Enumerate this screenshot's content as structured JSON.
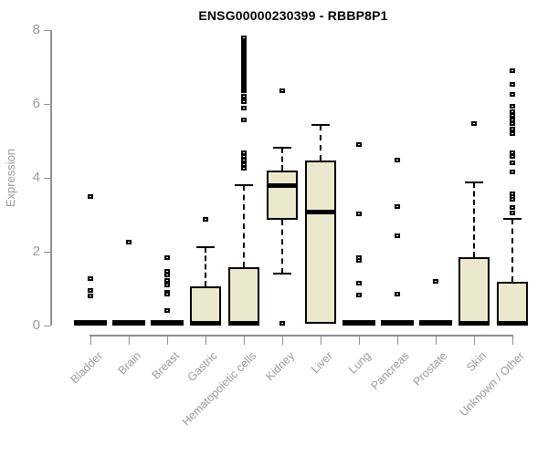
{
  "title": "ENSG00000230399 - RBBP8P1",
  "ylabel": "Expression",
  "colors": {
    "box_fill": "#ece8cd",
    "box_border": "#000000",
    "axis": "#8f8f8f",
    "tick_label": "#9b9b9b",
    "title": "#000000",
    "background": "#ffffff"
  },
  "chart_data": {
    "type": "boxplot",
    "title": "ENSG00000230399 - RBBP8P1",
    "xlabel": "",
    "ylabel": "Expression",
    "ylim": [
      0,
      8
    ],
    "yticks": [
      0,
      2,
      4,
      6,
      8
    ],
    "grid": false,
    "legend": false,
    "categories": [
      "Bladder",
      "Brain",
      "Breast",
      "Gastric",
      "Hematopoietic cells",
      "Kidney",
      "Liver",
      "Lung",
      "Pancreas",
      "Prostate",
      "Skin",
      "Unknown / Other"
    ],
    "series": [
      {
        "name": "Bladder",
        "q1": 0,
        "median": 0,
        "q3": 0,
        "whisker_low": 0,
        "whisker_high": 0,
        "outliers": [
          3.5,
          1.26,
          0.95,
          0.8
        ]
      },
      {
        "name": "Brain",
        "q1": 0,
        "median": 0,
        "q3": 0,
        "whisker_low": 0,
        "whisker_high": 0,
        "outliers": [
          2.27
        ]
      },
      {
        "name": "Breast",
        "q1": 0,
        "median": 0,
        "q3": 0,
        "whisker_low": 0,
        "whisker_high": 0,
        "outliers": [
          1.85,
          1.48,
          1.36,
          1.23,
          1.11,
          0.91,
          0.84,
          0.4
        ]
      },
      {
        "name": "Gastric",
        "q1": 0,
        "median": 0.02,
        "q3": 1.05,
        "whisker_low": 0,
        "whisker_high": 2.13,
        "outliers": [
          2.87
        ]
      },
      {
        "name": "Hematopoietic cells",
        "q1": 0,
        "median": 0.02,
        "q3": 1.58,
        "whisker_low": 0,
        "whisker_high": 3.8,
        "outliers": [
          4.25,
          4.37,
          4.47,
          4.57,
          4.69,
          5.56,
          5.9,
          6.07,
          6.15,
          6.22,
          6.35,
          6.4,
          6.45,
          6.5,
          6.55,
          6.6,
          6.65,
          6.7,
          6.74,
          6.78,
          6.82,
          6.86,
          6.9,
          6.94,
          6.98,
          7.02,
          7.06,
          7.1,
          7.14,
          7.18,
          7.22,
          7.26,
          7.3,
          7.34,
          7.38,
          7.42,
          7.46,
          7.5,
          7.55,
          7.6,
          7.65,
          7.7,
          7.75,
          7.8
        ]
      },
      {
        "name": "Kidney",
        "q1": 2.87,
        "median": 3.79,
        "q3": 4.19,
        "whisker_low": 1.41,
        "whisker_high": 4.81,
        "outliers": [
          6.36,
          0.05
        ]
      },
      {
        "name": "Liver",
        "q1": 0.05,
        "median": 3.08,
        "q3": 4.46,
        "whisker_low": 0.05,
        "whisker_high": 5.43,
        "outliers": []
      },
      {
        "name": "Lung",
        "q1": 0,
        "median": 0,
        "q3": 0,
        "whisker_low": 0,
        "whisker_high": 0,
        "outliers": [
          4.9,
          3.02,
          1.83,
          1.76,
          1.14,
          0.82
        ]
      },
      {
        "name": "Pancreas",
        "q1": 0,
        "median": 0,
        "q3": 0,
        "whisker_low": 0,
        "whisker_high": 0,
        "outliers": [
          4.47,
          3.21,
          2.42,
          0.84
        ]
      },
      {
        "name": "Prostate",
        "q1": 0,
        "median": 0,
        "q3": 0,
        "whisker_low": 0,
        "whisker_high": 0,
        "outliers": [
          1.19
        ]
      },
      {
        "name": "Skin",
        "q1": 0,
        "median": 0.02,
        "q3": 1.86,
        "whisker_low": 0,
        "whisker_high": 3.88,
        "outliers": [
          5.47
        ]
      },
      {
        "name": "Unknown / Other",
        "q1": 0,
        "median": 0.02,
        "q3": 1.19,
        "whisker_low": 0,
        "whisker_high": 2.89,
        "outliers": [
          6.91,
          6.54,
          6.27,
          5.93,
          5.8,
          5.7,
          5.62,
          5.56,
          5.46,
          5.33,
          5.19,
          4.69,
          4.57,
          4.4,
          4.15,
          3.58,
          3.5,
          3.41,
          3.19,
          3.06
        ]
      }
    ]
  }
}
